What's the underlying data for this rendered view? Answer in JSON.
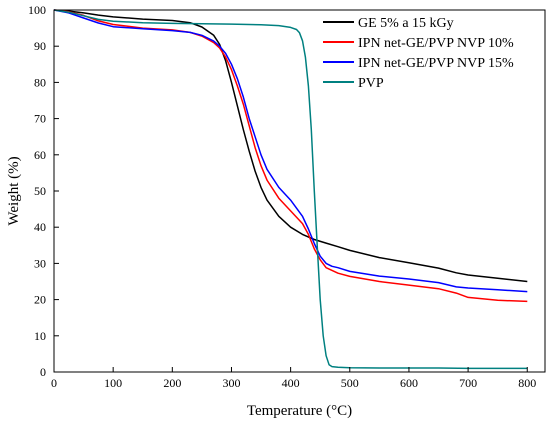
{
  "chart_data": {
    "type": "line",
    "title": "",
    "xlabel": "Temperature (°C)",
    "ylabel": "Weight (%)",
    "xlim": [
      0,
      830
    ],
    "ylim": [
      0,
      100
    ],
    "xticks": [
      0,
      100,
      200,
      300,
      400,
      500,
      600,
      700,
      800
    ],
    "yticks": [
      0,
      10,
      20,
      30,
      40,
      50,
      60,
      70,
      80,
      90,
      100
    ],
    "grid": false,
    "legend_position": "top-right",
    "series": [
      {
        "name": "GE 5% a 15 kGy",
        "color": "#000000",
        "x": [
          0,
          25,
          50,
          75,
          100,
          150,
          200,
          230,
          250,
          270,
          280,
          290,
          300,
          310,
          320,
          330,
          340,
          350,
          360,
          380,
          400,
          420,
          440,
          460,
          480,
          500,
          550,
          600,
          650,
          680,
          700,
          750,
          800
        ],
        "y": [
          100,
          99.7,
          99.2,
          98.6,
          98.1,
          97.5,
          97.1,
          96.5,
          95.3,
          93.0,
          90.5,
          86.0,
          80.0,
          73.5,
          67.0,
          61.0,
          55.5,
          51.0,
          47.5,
          43.0,
          40.0,
          38.0,
          36.6,
          35.6,
          34.6,
          33.6,
          31.6,
          30.2,
          28.7,
          27.4,
          26.8,
          25.9,
          25.0
        ]
      },
      {
        "name": "IPN net-GE/PVP NVP 10%",
        "color": "#ff0000",
        "x": [
          0,
          25,
          50,
          75,
          100,
          150,
          200,
          230,
          250,
          270,
          280,
          290,
          300,
          310,
          320,
          330,
          340,
          350,
          360,
          380,
          400,
          420,
          430,
          440,
          450,
          460,
          480,
          500,
          550,
          600,
          650,
          680,
          700,
          750,
          800
        ],
        "y": [
          100,
          99.5,
          98.5,
          97.0,
          96.0,
          95.0,
          94.5,
          93.8,
          92.8,
          91.0,
          89.5,
          87.0,
          83.5,
          79.0,
          74.0,
          68.0,
          62.0,
          57.0,
          53.0,
          48.0,
          44.5,
          41.0,
          38.0,
          34.0,
          31.0,
          28.8,
          27.3,
          26.4,
          25.0,
          24.0,
          23.0,
          21.8,
          20.6,
          19.8,
          19.5
        ]
      },
      {
        "name": "IPN net-GE/PVP NVP 15%",
        "color": "#0000ff",
        "x": [
          0,
          25,
          50,
          75,
          100,
          150,
          200,
          230,
          250,
          270,
          280,
          290,
          300,
          310,
          320,
          330,
          340,
          350,
          360,
          380,
          400,
          420,
          430,
          440,
          450,
          460,
          470,
          480,
          500,
          550,
          600,
          650,
          680,
          700,
          750,
          800
        ],
        "y": [
          100,
          99.2,
          97.8,
          96.4,
          95.4,
          94.8,
          94.3,
          93.8,
          93.0,
          91.4,
          90.0,
          88.0,
          85.0,
          81.0,
          76.0,
          70.0,
          65.0,
          60.0,
          56.0,
          51.0,
          47.5,
          43.0,
          39.5,
          35.5,
          32.0,
          30.0,
          29.2,
          28.8,
          27.8,
          26.5,
          25.7,
          24.7,
          23.5,
          23.2,
          22.7,
          22.2
        ]
      },
      {
        "name": "PVP",
        "color": "#008080",
        "x": [
          0,
          25,
          50,
          75,
          100,
          150,
          200,
          250,
          300,
          350,
          380,
          400,
          410,
          415,
          420,
          425,
          430,
          435,
          440,
          445,
          450,
          455,
          460,
          465,
          470,
          480,
          500,
          550,
          600,
          650,
          700,
          750,
          800
        ],
        "y": [
          100,
          99.4,
          98.4,
          97.4,
          96.9,
          96.5,
          96.3,
          96.2,
          96.1,
          95.9,
          95.7,
          95.2,
          94.6,
          93.7,
          91.5,
          87.0,
          79.0,
          67.0,
          50.0,
          35.0,
          20.0,
          10.0,
          4.5,
          2.0,
          1.5,
          1.3,
          1.2,
          1.1,
          1.1,
          1.1,
          1.0,
          1.0,
          1.0
        ]
      }
    ]
  }
}
